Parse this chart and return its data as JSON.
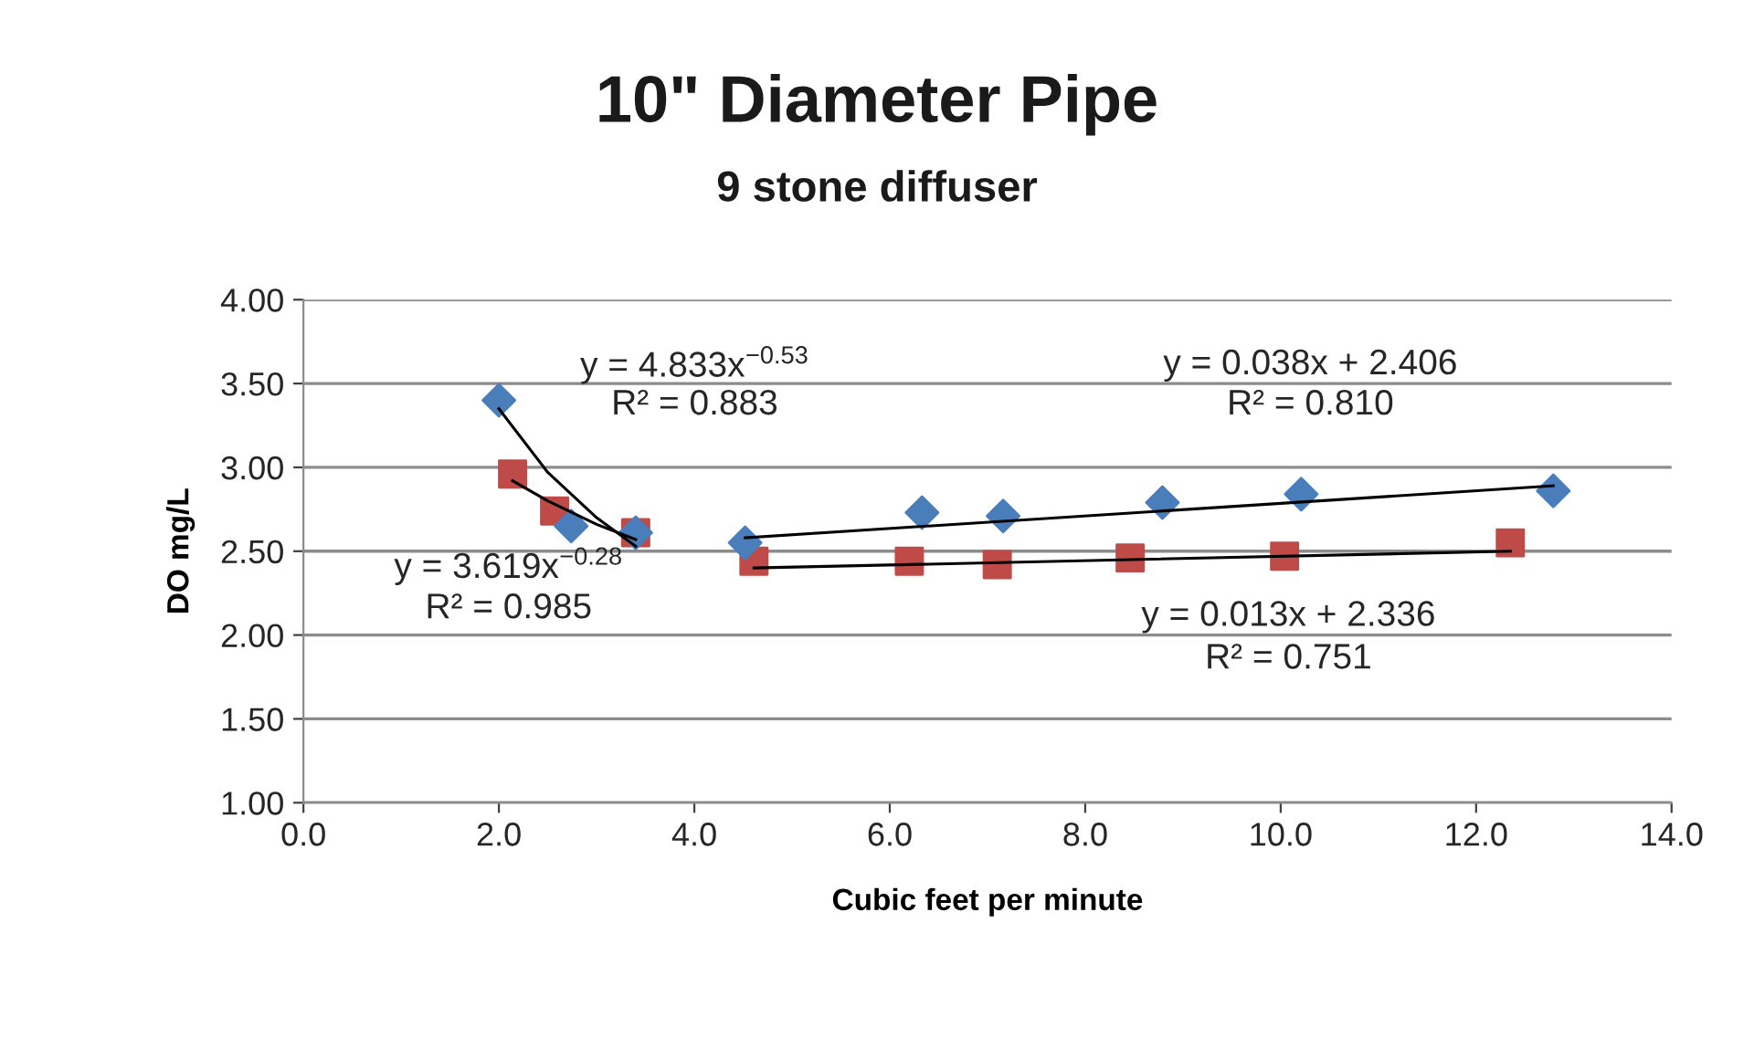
{
  "chart_data": {
    "type": "scatter",
    "title": "10\" Diameter Pipe",
    "subtitle": "9 stone diffuser",
    "xlabel": "Cubic feet per minute",
    "ylabel": "DO mg/L",
    "xlim": [
      0,
      14
    ],
    "ylim": [
      1,
      4
    ],
    "xticks": [
      {
        "value": 0,
        "label": "0.0"
      },
      {
        "value": 2,
        "label": "2.0"
      },
      {
        "value": 4,
        "label": "4.0"
      },
      {
        "value": 6,
        "label": "6.0"
      },
      {
        "value": 8,
        "label": "8.0"
      },
      {
        "value": 10,
        "label": "10.0"
      },
      {
        "value": 12,
        "label": "12.0"
      },
      {
        "value": 14,
        "label": "14.0"
      }
    ],
    "yticks": [
      {
        "value": 1,
        "label": "1.00"
      },
      {
        "value": 1.5,
        "label": "1.50"
      },
      {
        "value": 2,
        "label": "2.00"
      },
      {
        "value": 2.5,
        "label": "2.50"
      },
      {
        "value": 3,
        "label": "3.00"
      },
      {
        "value": 3.5,
        "label": "3.50"
      },
      {
        "value": 4,
        "label": "4.00"
      }
    ],
    "grid": "y",
    "series": [
      {
        "marker": "diamond",
        "color": "#4a7ebb",
        "x": [
          2.0,
          2.74,
          3.4,
          4.52,
          6.33,
          7.16,
          8.79,
          10.21,
          12.79
        ],
        "values": [
          3.4,
          2.65,
          2.61,
          2.55,
          2.73,
          2.71,
          2.79,
          2.84,
          2.86
        ]
      },
      {
        "marker": "square",
        "color": "#be4b48",
        "x": [
          2.14,
          2.57,
          3.4,
          4.61,
          6.2,
          7.1,
          8.46,
          10.04,
          12.35
        ],
        "values": [
          2.96,
          2.74,
          2.61,
          2.44,
          2.44,
          2.42,
          2.46,
          2.47,
          2.55
        ]
      },
      {
        "type": "line",
        "marker": "none",
        "color": "#000000",
        "x": [
          2.0,
          2.5,
          3.0,
          3.4
        ],
        "values": [
          3.35,
          2.97,
          2.7,
          2.53
        ]
      },
      {
        "type": "line",
        "marker": "none",
        "color": "#000000",
        "x": [
          2.14,
          2.5,
          3.0,
          3.4
        ],
        "values": [
          2.92,
          2.8,
          2.66,
          2.57
        ]
      },
      {
        "type": "line",
        "marker": "none",
        "color": "#000000",
        "x": [
          4.52,
          12.79
        ],
        "values": [
          2.58,
          2.89
        ]
      },
      {
        "type": "line",
        "marker": "none",
        "color": "#000000",
        "x": [
          4.61,
          12.35
        ],
        "values": [
          2.4,
          2.5
        ]
      }
    ],
    "annotations": [
      "y = 4.833x$^{−0.53}$",
      "R² = 0.883",
      "y = 3.619x$^{−0.28}$",
      "R² = 0.985",
      "y = 0.038x + 2.406",
      "R² = 0.810",
      "y = 0.013x + 2.336",
      "R² = 0.751"
    ]
  }
}
